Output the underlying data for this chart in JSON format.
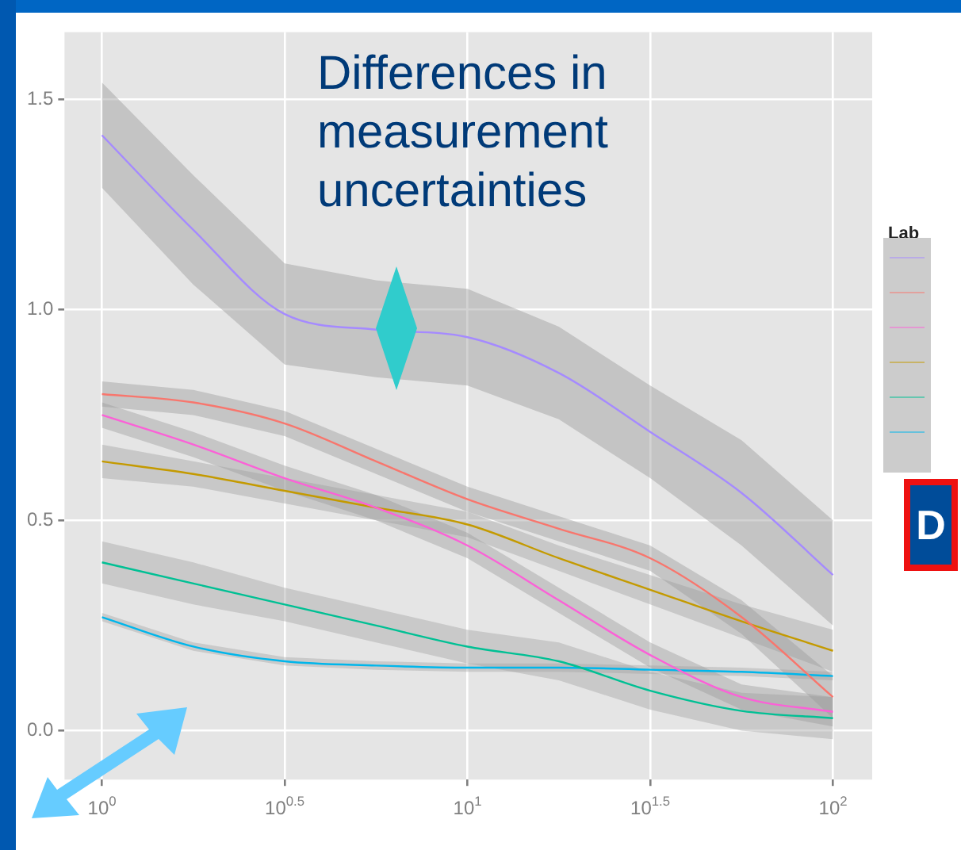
{
  "chart_data": {
    "type": "line",
    "x": [
      1,
      1.778,
      3.162,
      5.623,
      10,
      17.78,
      31.62,
      56.23,
      100
    ],
    "series": [
      {
        "color": "#a58aff",
        "values": [
          1.415,
          1.19,
          0.99,
          0.953,
          0.935,
          0.85,
          0.71,
          0.565,
          0.37
        ],
        "lower": [
          1.29,
          1.06,
          0.87,
          0.84,
          0.82,
          0.74,
          0.6,
          0.44,
          0.25
        ],
        "upper": [
          1.54,
          1.32,
          1.11,
          1.07,
          1.05,
          0.96,
          0.82,
          0.69,
          0.5
        ]
      },
      {
        "color": "#f8766d",
        "values": [
          0.8,
          0.78,
          0.73,
          0.64,
          0.55,
          0.48,
          0.41,
          0.27,
          0.08
        ],
        "lower": [
          0.77,
          0.75,
          0.7,
          0.61,
          0.52,
          0.45,
          0.38,
          0.23,
          0.03
        ],
        "upper": [
          0.83,
          0.81,
          0.76,
          0.67,
          0.58,
          0.51,
          0.44,
          0.31,
          0.13
        ]
      },
      {
        "color": "#fb61d7",
        "values": [
          0.75,
          0.68,
          0.6,
          0.53,
          0.44,
          0.31,
          0.18,
          0.08,
          0.045
        ],
        "lower": [
          0.72,
          0.65,
          0.57,
          0.5,
          0.41,
          0.28,
          0.15,
          0.05,
          0.01
        ],
        "upper": [
          0.78,
          0.71,
          0.63,
          0.56,
          0.47,
          0.34,
          0.21,
          0.11,
          0.08
        ]
      },
      {
        "color": "#c49a00",
        "values": [
          0.64,
          0.61,
          0.57,
          0.53,
          0.49,
          0.41,
          0.335,
          0.26,
          0.19
        ],
        "lower": [
          0.6,
          0.58,
          0.54,
          0.5,
          0.46,
          0.38,
          0.3,
          0.22,
          0.14
        ],
        "upper": [
          0.68,
          0.64,
          0.6,
          0.56,
          0.52,
          0.44,
          0.37,
          0.3,
          0.24
        ]
      },
      {
        "color": "#00c094",
        "values": [
          0.4,
          0.35,
          0.3,
          0.25,
          0.2,
          0.165,
          0.095,
          0.047,
          0.03
        ],
        "lower": [
          0.35,
          0.3,
          0.26,
          0.21,
          0.16,
          0.12,
          0.05,
          0.0,
          -0.02
        ],
        "upper": [
          0.45,
          0.4,
          0.34,
          0.29,
          0.24,
          0.21,
          0.14,
          0.09,
          0.08
        ]
      },
      {
        "color": "#00b6eb",
        "values": [
          0.27,
          0.2,
          0.165,
          0.155,
          0.15,
          0.15,
          0.145,
          0.14,
          0.13
        ],
        "lower": [
          0.26,
          0.19,
          0.155,
          0.145,
          0.14,
          0.14,
          0.135,
          0.13,
          0.12
        ],
        "upper": [
          0.28,
          0.21,
          0.175,
          0.165,
          0.16,
          0.16,
          0.155,
          0.15,
          0.14
        ]
      }
    ],
    "log": "x",
    "xlim": [
      0.79,
      128
    ],
    "xticks": [
      {
        "value": 1,
        "label": "10$^{0}$"
      },
      {
        "value": 3.162,
        "label": "10$^{0.5}$"
      },
      {
        "value": 10,
        "label": "10$^{1}$"
      },
      {
        "value": 31.62,
        "label": "10$^{1.5}$"
      },
      {
        "value": 100,
        "label": "10$^{2}$"
      }
    ],
    "ylim": [
      -0.116,
      1.66
    ],
    "yticks": [
      {
        "value": 0,
        "label": "0.0"
      },
      0.5,
      {
        "value": 1,
        "label": "1.0"
      },
      1.5
    ],
    "grid": true,
    "legend_title": "Lab",
    "marker": "none",
    "line_style": "solid",
    "annotations": [
      "Differences in measurement uncertainties",
      "D"
    ]
  }
}
